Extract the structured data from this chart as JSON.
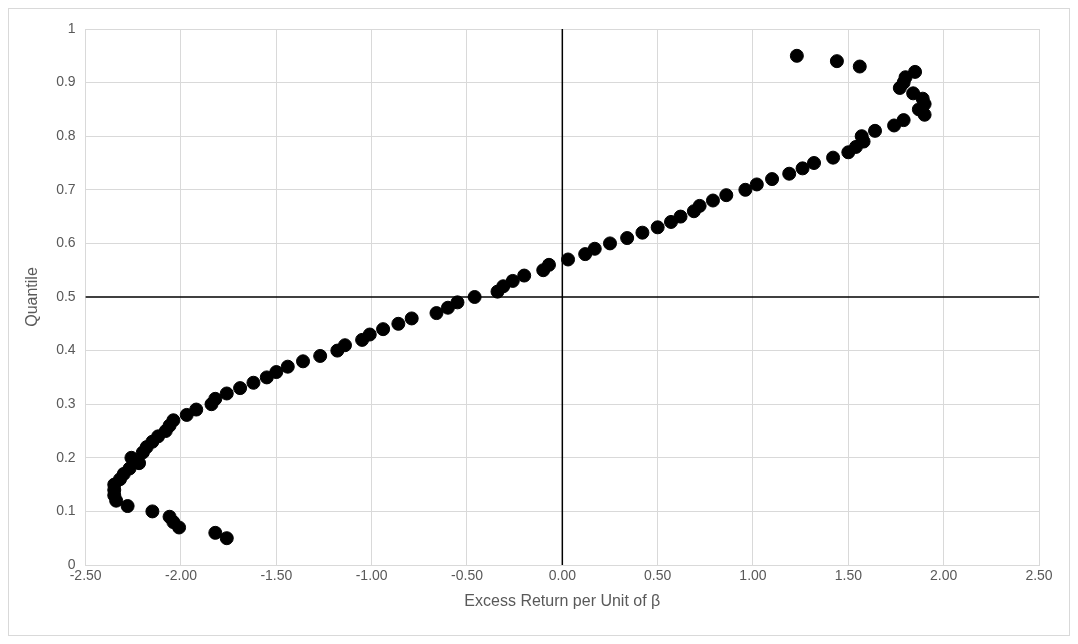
{
  "chart_data": {
    "type": "scatter",
    "xlabel": "Excess Return per Unit of β",
    "ylabel": "Quantile",
    "series": [
      {
        "color": "#000000",
        "marker": "circle",
        "x": [
          -1.76,
          -1.82,
          -2.01,
          -2.04,
          -2.06,
          -2.15,
          -2.28,
          -2.34,
          -2.35,
          -2.35,
          -2.35,
          -2.32,
          -2.3,
          -2.27,
          -2.22,
          -2.26,
          -2.2,
          -2.18,
          -2.15,
          -2.12,
          -2.08,
          -2.06,
          -2.04,
          -1.97,
          -1.92,
          -1.84,
          -1.82,
          -1.76,
          -1.69,
          -1.62,
          -1.55,
          -1.5,
          -1.44,
          -1.36,
          -1.27,
          -1.18,
          -1.14,
          -1.05,
          -1.01,
          -0.94,
          -0.86,
          -0.79,
          -0.66,
          -0.6,
          -0.55,
          -0.46,
          -0.34,
          -0.31,
          -0.26,
          -0.2,
          -0.1,
          -0.07,
          0.03,
          0.12,
          0.17,
          0.25,
          0.34,
          0.42,
          0.5,
          0.57,
          0.62,
          0.69,
          0.72,
          0.79,
          0.86,
          0.96,
          1.02,
          1.1,
          1.19,
          1.26,
          1.32,
          1.42,
          1.5,
          1.54,
          1.58,
          1.57,
          1.64,
          1.74,
          1.79,
          1.9,
          1.87,
          1.9,
          1.89,
          1.84,
          1.77,
          1.79,
          1.8,
          1.85,
          1.56,
          1.44,
          1.23
        ],
        "values": [
          0.05,
          0.06,
          0.07,
          0.08,
          0.09,
          0.1,
          0.11,
          0.12,
          0.13,
          0.14,
          0.15,
          0.16,
          0.17,
          0.18,
          0.19,
          0.2,
          0.21,
          0.22,
          0.23,
          0.24,
          0.25,
          0.26,
          0.27,
          0.28,
          0.29,
          0.3,
          0.31,
          0.32,
          0.33,
          0.34,
          0.35,
          0.36,
          0.37,
          0.38,
          0.39,
          0.4,
          0.41,
          0.42,
          0.43,
          0.44,
          0.45,
          0.46,
          0.47,
          0.48,
          0.49,
          0.5,
          0.51,
          0.52,
          0.53,
          0.54,
          0.55,
          0.56,
          0.57,
          0.58,
          0.59,
          0.6,
          0.61,
          0.62,
          0.63,
          0.64,
          0.65,
          0.66,
          0.67,
          0.68,
          0.69,
          0.7,
          0.71,
          0.72,
          0.73,
          0.74,
          0.75,
          0.76,
          0.77,
          0.78,
          0.79,
          0.8,
          0.81,
          0.82,
          0.83,
          0.84,
          0.85,
          0.86,
          0.87,
          0.88,
          0.89,
          0.9,
          0.91,
          0.92,
          0.93,
          0.94,
          0.95
        ]
      }
    ],
    "xlim": [
      -2.5,
      2.5
    ],
    "xticks": [
      {
        "value": -2.5,
        "label": "-2.50"
      },
      {
        "value": -2,
        "label": "-2.00"
      },
      {
        "value": -1.5,
        "label": "-1.50"
      },
      {
        "value": -1,
        "label": "-1.00"
      },
      {
        "value": -0.5,
        "label": "-0.50"
      },
      {
        "value": 0,
        "label": "0.00"
      },
      {
        "value": 0.5,
        "label": "0.50"
      },
      {
        "value": 1,
        "label": "1.00"
      },
      {
        "value": 1.5,
        "label": "1.50"
      },
      {
        "value": 2,
        "label": "2.00"
      },
      {
        "value": 2.5,
        "label": "2.50"
      }
    ],
    "ylim": [
      0,
      1
    ],
    "yticks": [
      0,
      0.1,
      0.2,
      0.3,
      0.4,
      0.5,
      0.6,
      0.7,
      0.8,
      0.9,
      1
    ],
    "ref_lines": [
      {
        "axis": "x",
        "value": 0,
        "color": "#000000"
      },
      {
        "axis": "y",
        "value": 0.5,
        "color": "#000000"
      }
    ],
    "grid": true,
    "legend": false
  }
}
